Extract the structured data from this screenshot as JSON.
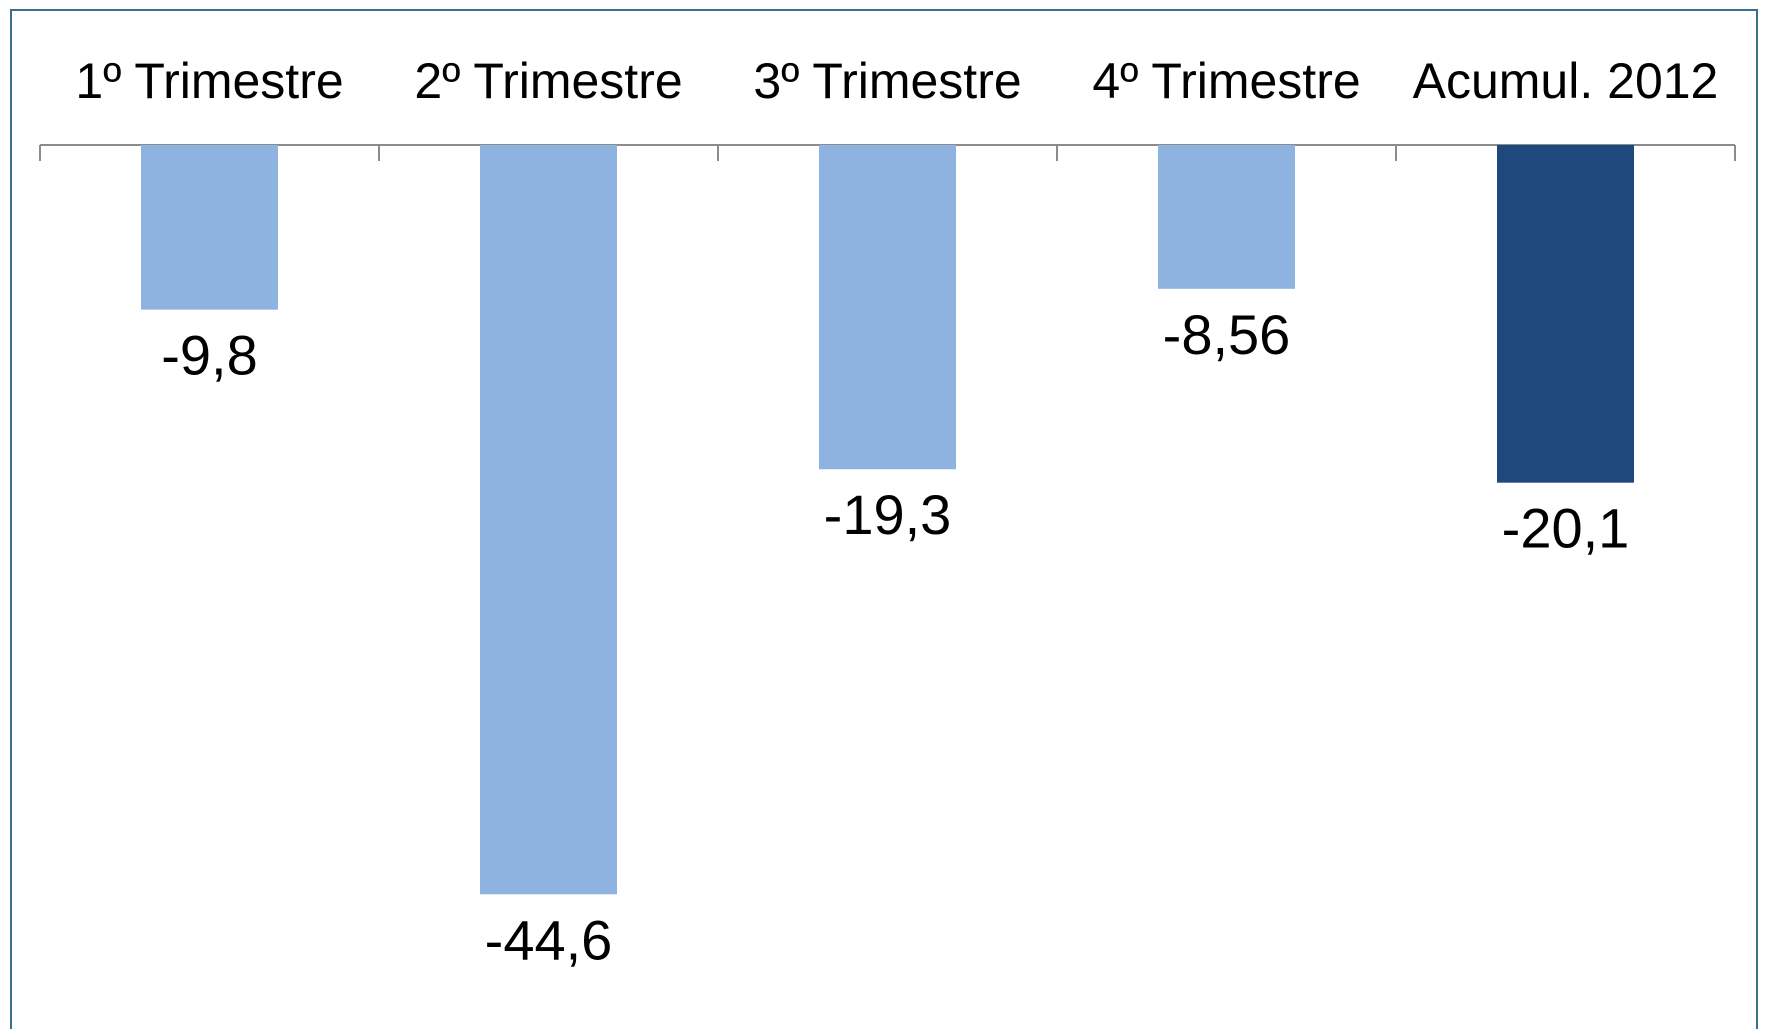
{
  "chart_data": {
    "type": "bar",
    "categories": [
      "1º Trimestre",
      "2º Trimestre",
      "3º Trimestre",
      "4º Trimestre",
      "Acumul. 2012"
    ],
    "values": [
      -9.8,
      -44.6,
      -19.3,
      -8.56,
      -20.1
    ],
    "value_labels": [
      "-9,8",
      "-44,6",
      "-19,3",
      "-8,56",
      "-20,1"
    ],
    "bar_colors": [
      "#8eb3e1",
      "#8eb3e1",
      "#8eb3e1",
      "#8eb3e1",
      "#1f497d"
    ],
    "ylim": [
      -50,
      0
    ],
    "axis_position": "top",
    "grid": false,
    "legend": "none",
    "title": "",
    "xlabel": "",
    "ylabel": ""
  }
}
